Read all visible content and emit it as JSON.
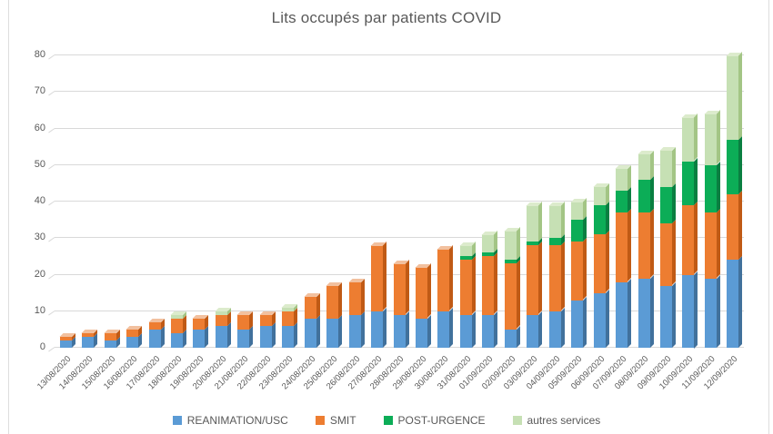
{
  "title": "Lits occupés par patients COVID",
  "colors": {
    "background": "#ffffff",
    "frame_border": "#dedede",
    "gridline": "#d9d9d9",
    "text": "#595959"
  },
  "chart_data": {
    "type": "bar",
    "stacked": true,
    "grid": true,
    "legend_position": "bottom",
    "title": "Lits occupés par patients COVID",
    "xlabel": "",
    "ylabel": "",
    "ylim": [
      0,
      80
    ],
    "ytick_step": 10,
    "y_ticks": [
      "0",
      "10",
      "20",
      "30",
      "40",
      "50",
      "60",
      "70",
      "80"
    ],
    "categories": [
      "13/08/2020",
      "14/08/2020",
      "15/08/2020",
      "16/08/2020",
      "17/08/2020",
      "18/08/2020",
      "19/08/2020",
      "20/08/2020",
      "21/08/2020",
      "22/08/2020",
      "23/08/2020",
      "24/08/2020",
      "25/08/2020",
      "26/08/2020",
      "27/08/2020",
      "28/08/2020",
      "29/08/2020",
      "30/08/2020",
      "31/08/2020",
      "01/09/2020",
      "02/09/2020",
      "03/09/2020",
      "04/09/2020",
      "05/09/2020",
      "06/09/2020",
      "07/09/2020",
      "08/09/2020",
      "09/09/2020",
      "10/09/2020",
      "11/09/2020",
      "12/09/2020"
    ],
    "series": [
      {
        "name": "REANIMATION/USC",
        "color": "#5b9bd5",
        "side_color": "#41719c",
        "cap_color": "#9dc3e6",
        "values": [
          2,
          3,
          2,
          3,
          5,
          4,
          5,
          6,
          5,
          6,
          6,
          8,
          8,
          9,
          10,
          9,
          8,
          10,
          9,
          9,
          5,
          9,
          10,
          13,
          15,
          18,
          19,
          17,
          20,
          19,
          24
        ]
      },
      {
        "name": "SMIT",
        "color": "#ed7d31",
        "side_color": "#c05a15",
        "cap_color": "#f2c09e",
        "values": [
          1,
          1,
          2,
          2,
          2,
          4,
          3,
          3,
          4,
          3,
          4,
          6,
          9,
          9,
          18,
          14,
          14,
          17,
          15,
          16,
          18,
          19,
          18,
          16,
          16,
          19,
          18,
          17,
          19,
          18,
          18
        ]
      },
      {
        "name": "POST-URGENCE",
        "color": "#0cad57",
        "side_color": "#0a7f41",
        "cap_color": "#63c892",
        "values": [
          0,
          0,
          0,
          0,
          0,
          0,
          0,
          0,
          0,
          0,
          0,
          0,
          0,
          0,
          0,
          0,
          0,
          0,
          1,
          1,
          1,
          1,
          2,
          6,
          8,
          6,
          9,
          10,
          12,
          13,
          15
        ]
      },
      {
        "name": "autres services",
        "color": "#c6e0b4",
        "side_color": "#a3c585",
        "cap_color": "#dcebcc",
        "values": [
          0,
          0,
          0,
          0,
          0,
          1,
          0,
          1,
          0,
          0,
          1,
          0,
          0,
          0,
          0,
          0,
          0,
          0,
          3,
          5,
          8,
          10,
          9,
          5,
          5,
          6,
          7,
          10,
          12,
          14,
          23
        ]
      }
    ],
    "totals": [
      3,
      4,
      4,
      5,
      7,
      9,
      8,
      10,
      9,
      9,
      11,
      14,
      17,
      18,
      28,
      23,
      22,
      27,
      28,
      31,
      32,
      39,
      39,
      40,
      44,
      49,
      53,
      54,
      63,
      64,
      80
    ]
  }
}
